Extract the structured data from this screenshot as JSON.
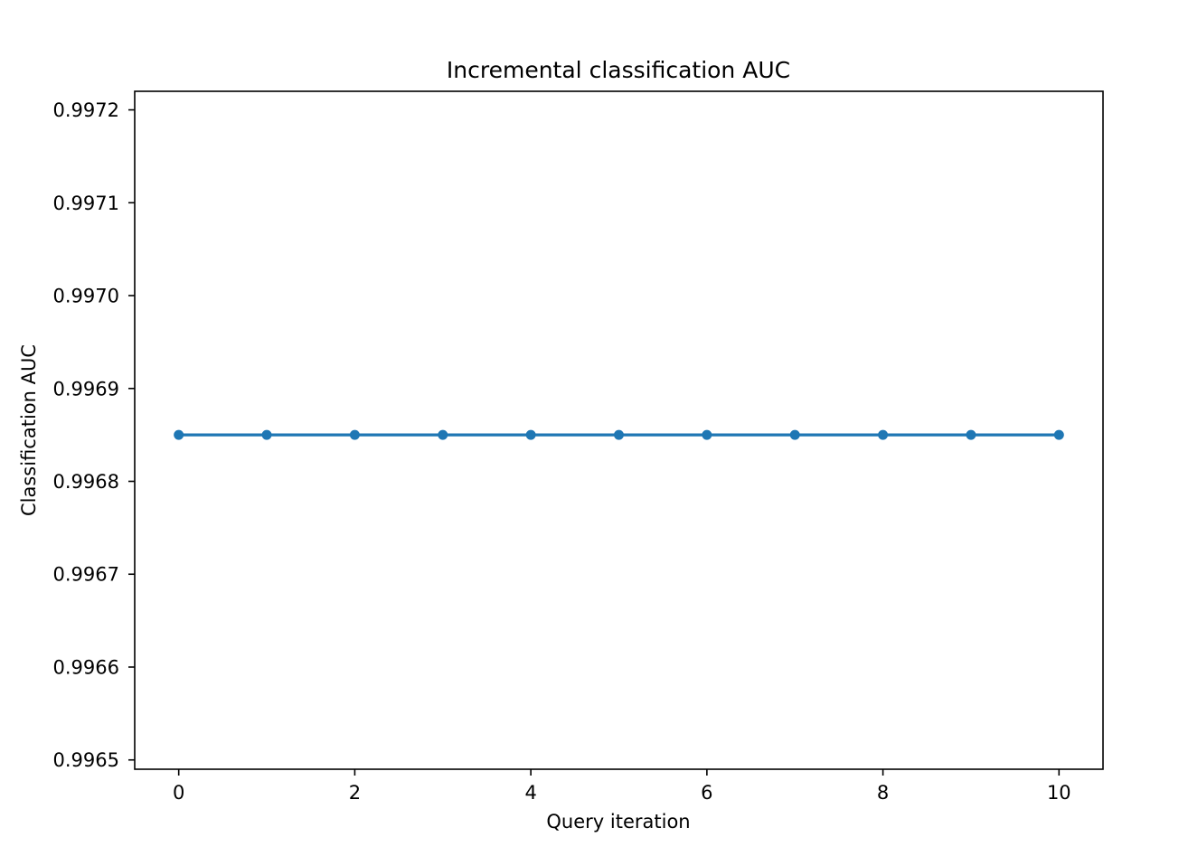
{
  "chart_data": {
    "type": "line",
    "title": "Incremental classification AUC",
    "xlabel": "Query iteration",
    "ylabel": "Classification AUC",
    "x": [
      0,
      1,
      2,
      3,
      4,
      5,
      6,
      7,
      8,
      9,
      10
    ],
    "series": [
      {
        "name": "AUC",
        "color": "#1f77b4",
        "values": [
          0.99685,
          0.99685,
          0.99685,
          0.99685,
          0.99685,
          0.99685,
          0.99685,
          0.99685,
          0.99685,
          0.99685,
          0.99685
        ]
      }
    ],
    "xlim": [
      -0.5,
      10.5
    ],
    "ylim": [
      0.99649,
      0.99722
    ],
    "xticks": [
      0,
      2,
      4,
      6,
      8,
      10
    ],
    "xtick_labels": [
      "0",
      "2",
      "4",
      "6",
      "8",
      "10"
    ],
    "yticks": [
      0.9965,
      0.9966,
      0.9967,
      0.9968,
      0.9969,
      0.997,
      0.9971,
      0.9972
    ],
    "ytick_labels": [
      "0.9965",
      "0.9966",
      "0.9967",
      "0.9968",
      "0.9969",
      "0.9970",
      "0.9971",
      "0.9972"
    ],
    "grid": false,
    "legend": "none"
  }
}
